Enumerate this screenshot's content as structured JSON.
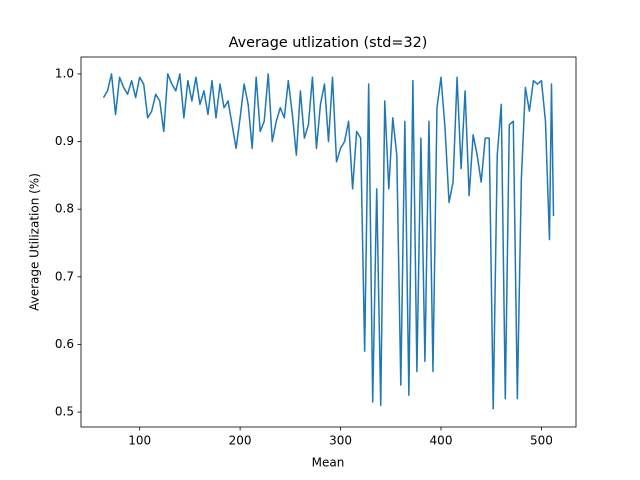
{
  "chart_data": {
    "type": "line",
    "title": "Average utlization (std=32)",
    "xlabel": "Mean",
    "ylabel": "Average Utilization (%)",
    "x": [
      64,
      68,
      72,
      76,
      80,
      84,
      88,
      92,
      96,
      100,
      104,
      108,
      112,
      116,
      120,
      124,
      128,
      132,
      136,
      140,
      144,
      148,
      152,
      156,
      160,
      164,
      168,
      172,
      176,
      180,
      184,
      188,
      192,
      196,
      200,
      204,
      208,
      212,
      216,
      220,
      224,
      228,
      232,
      236,
      240,
      244,
      248,
      252,
      256,
      260,
      264,
      268,
      272,
      276,
      280,
      284,
      288,
      292,
      296,
      300,
      304,
      308,
      312,
      316,
      320,
      324,
      328,
      332,
      336,
      340,
      344,
      348,
      352,
      356,
      360,
      364,
      368,
      372,
      376,
      380,
      384,
      388,
      392,
      396,
      400,
      404,
      408,
      412,
      416,
      420,
      424,
      428,
      432,
      436,
      440,
      444,
      448,
      452,
      456,
      460,
      464,
      468,
      472,
      476,
      480,
      484,
      488,
      492,
      496,
      500,
      504,
      508,
      510,
      512
    ],
    "series": [
      {
        "name": "utilization",
        "color": "#1f77b4",
        "values": [
          0.965,
          0.975,
          1.0,
          0.94,
          0.995,
          0.98,
          0.97,
          0.99,
          0.965,
          0.995,
          0.985,
          0.935,
          0.945,
          0.97,
          0.96,
          0.915,
          1.0,
          0.985,
          0.975,
          1.0,
          0.935,
          0.99,
          0.96,
          0.995,
          0.955,
          0.975,
          0.94,
          0.99,
          0.935,
          0.985,
          0.95,
          0.96,
          0.925,
          0.89,
          0.935,
          0.985,
          0.955,
          0.89,
          0.995,
          0.915,
          0.93,
          1.0,
          0.9,
          0.93,
          0.95,
          0.935,
          0.99,
          0.94,
          0.88,
          0.975,
          0.905,
          0.925,
          0.995,
          0.89,
          0.955,
          0.985,
          0.9,
          0.995,
          0.87,
          0.89,
          0.9,
          0.93,
          0.83,
          0.915,
          0.905,
          0.59,
          0.985,
          0.515,
          0.83,
          0.51,
          0.96,
          0.83,
          0.935,
          0.88,
          0.54,
          0.93,
          0.525,
          0.99,
          0.56,
          0.905,
          0.575,
          0.93,
          0.56,
          0.95,
          0.995,
          0.92,
          0.81,
          0.84,
          0.995,
          0.86,
          0.975,
          0.82,
          0.91,
          0.88,
          0.84,
          0.905,
          0.905,
          0.505,
          0.88,
          0.955,
          0.52,
          0.925,
          0.93,
          0.52,
          0.845,
          0.98,
          0.945,
          0.99,
          0.985,
          0.99,
          0.93,
          0.755,
          0.985,
          0.79
        ]
      }
    ],
    "xlim": [
      41.6,
      534.4
    ],
    "ylim": [
      0.478,
      1.025
    ],
    "xticks": [
      100,
      200,
      300,
      400,
      500
    ],
    "yticks": [
      0.5,
      0.6,
      0.7,
      0.8,
      0.9,
      {
        "value": 1,
        "label": "1.0"
      }
    ]
  }
}
